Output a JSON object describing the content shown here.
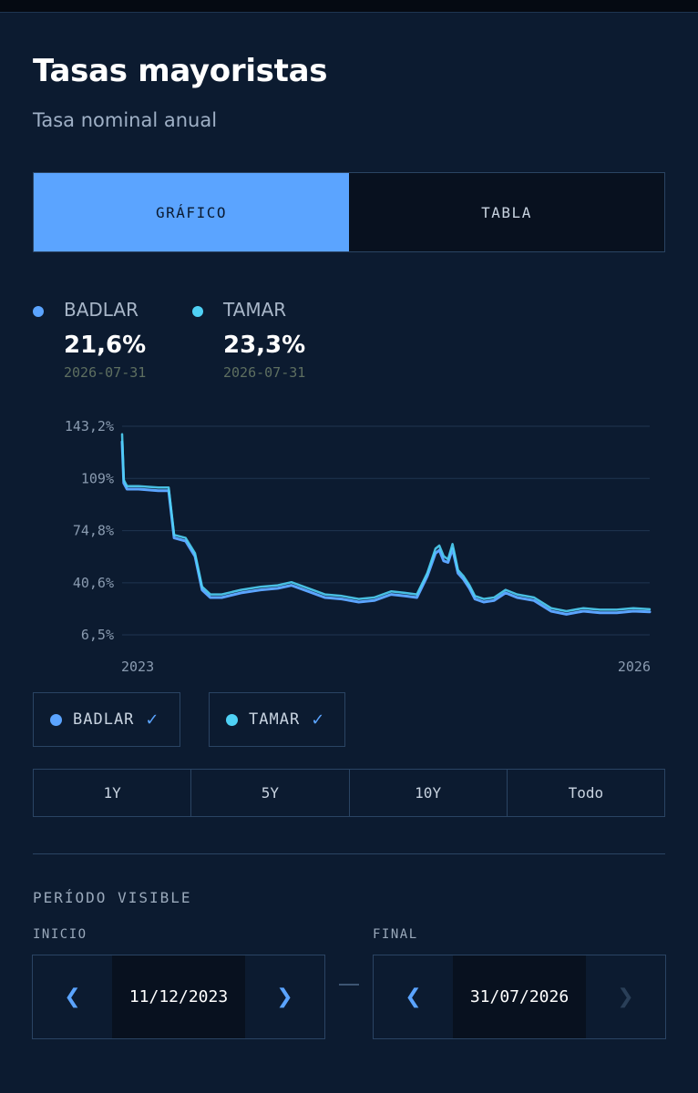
{
  "header": {
    "title": "Tasas mayoristas",
    "subtitle": "Tasa nominal anual"
  },
  "view_tabs": [
    {
      "label": "GRÁFICO",
      "active": true
    },
    {
      "label": "TABLA",
      "active": false
    }
  ],
  "legend": [
    {
      "name": "BADLAR",
      "value": "21,6%",
      "date": "2026-07-31",
      "color": "#5ba4ff"
    },
    {
      "name": "TAMAR",
      "value": "23,3%",
      "date": "2026-07-31",
      "color": "#4fd1f5"
    }
  ],
  "chart_data": {
    "type": "line",
    "y_ticks": [
      "143,2%",
      "109%",
      "74,8%",
      "40,6%",
      "6,5%"
    ],
    "y_tick_values": [
      143.2,
      109,
      74.8,
      40.6,
      6.5
    ],
    "ylim": [
      6.5,
      143.2
    ],
    "x_tick_labels": [
      "2023",
      "2026"
    ],
    "x_range": [
      "2023-12-11",
      "2026-07-31"
    ],
    "grid": true,
    "series": [
      {
        "name": "BADLAR",
        "color": "#5ba4ff",
        "x": [
          "2023-12-11",
          "2023-12-14",
          "2023-12-20",
          "2024-01-10",
          "2024-02-15",
          "2024-03-05",
          "2024-03-15",
          "2024-04-05",
          "2024-04-22",
          "2024-05-05",
          "2024-05-20",
          "2024-06-10",
          "2024-07-15",
          "2024-08-20",
          "2024-09-20",
          "2024-10-15",
          "2024-11-15",
          "2024-12-15",
          "2025-01-15",
          "2025-02-15",
          "2025-03-15",
          "2025-04-15",
          "2025-05-10",
          "2025-06-01",
          "2025-06-20",
          "2025-07-05",
          "2025-07-12",
          "2025-07-20",
          "2025-07-28",
          "2025-08-05",
          "2025-08-15",
          "2025-08-25",
          "2025-09-05",
          "2025-09-15",
          "2025-10-01",
          "2025-10-20",
          "2025-11-10",
          "2025-12-01",
          "2026-01-01",
          "2026-02-01",
          "2026-03-01",
          "2026-04-01",
          "2026-05-01",
          "2026-06-01",
          "2026-07-01",
          "2026-07-31"
        ],
        "y": [
          133,
          106,
          102,
          102,
          101,
          101,
          70,
          68,
          58,
          36,
          31,
          31,
          34,
          36,
          37,
          39,
          35,
          31,
          30,
          28,
          29,
          33,
          32,
          31,
          45,
          60,
          62,
          55,
          54,
          63,
          47,
          43,
          37,
          30,
          28,
          29,
          34,
          31,
          29,
          22,
          20,
          22,
          21,
          21,
          22,
          21.6
        ]
      },
      {
        "name": "TAMAR",
        "color": "#4fd1f5",
        "x": [
          "2023-12-11",
          "2023-12-14",
          "2023-12-20",
          "2024-01-10",
          "2024-02-15",
          "2024-03-05",
          "2024-03-15",
          "2024-04-05",
          "2024-04-22",
          "2024-05-05",
          "2024-05-20",
          "2024-06-10",
          "2024-07-15",
          "2024-08-20",
          "2024-09-20",
          "2024-10-15",
          "2024-11-15",
          "2024-12-15",
          "2025-01-15",
          "2025-02-15",
          "2025-03-15",
          "2025-04-15",
          "2025-05-10",
          "2025-06-01",
          "2025-06-20",
          "2025-07-05",
          "2025-07-12",
          "2025-07-20",
          "2025-07-28",
          "2025-08-05",
          "2025-08-15",
          "2025-08-25",
          "2025-09-05",
          "2025-09-15",
          "2025-10-01",
          "2025-10-20",
          "2025-11-10",
          "2025-12-01",
          "2026-01-01",
          "2026-02-01",
          "2026-03-01",
          "2026-04-01",
          "2026-05-01",
          "2026-06-01",
          "2026-07-01",
          "2026-07-31"
        ],
        "y": [
          138,
          108,
          104,
          104,
          103,
          103,
          72,
          70,
          60,
          38,
          33,
          33,
          36,
          38,
          39,
          41,
          37,
          33,
          32,
          30,
          31,
          35,
          34,
          33,
          47,
          63,
          65,
          58,
          56,
          66,
          49,
          45,
          39,
          32,
          30,
          31,
          36,
          33,
          31,
          24,
          22,
          24,
          23,
          23,
          24,
          23.3
        ]
      }
    ]
  },
  "series_toggles": [
    {
      "label": "BADLAR",
      "check": "✓",
      "color": "#5ba4ff"
    },
    {
      "label": "TAMAR",
      "check": "✓",
      "color": "#4fd1f5"
    }
  ],
  "ranges": [
    "1Y",
    "5Y",
    "10Y",
    "Todo"
  ],
  "period": {
    "section_label": "PERÍODO VISIBLE",
    "start": {
      "label": "INICIO",
      "value": "11/12/2023",
      "prev": "❮",
      "next": "❯"
    },
    "end": {
      "label": "FINAL",
      "value": "31/07/2026",
      "prev": "❮",
      "next": "❯"
    }
  }
}
